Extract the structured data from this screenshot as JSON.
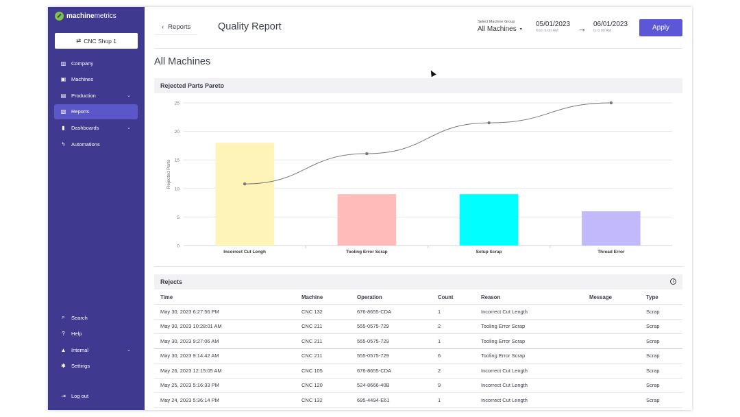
{
  "brand": {
    "name_bold": "machine",
    "name_rest": "metrics",
    "color": "#7dc242"
  },
  "sidebar": {
    "shop_button": "CNC Shop 1",
    "items": [
      {
        "label": "Company",
        "icon": "company-icon",
        "active": false,
        "chevron": false
      },
      {
        "label": "Machines",
        "icon": "machines-icon",
        "active": false,
        "chevron": false
      },
      {
        "label": "Production",
        "icon": "production-icon",
        "active": false,
        "chevron": true
      },
      {
        "label": "Reports",
        "icon": "reports-icon",
        "active": true,
        "chevron": false
      },
      {
        "label": "Dashboards",
        "icon": "dashboards-icon",
        "active": false,
        "chevron": true
      },
      {
        "label": "Automations",
        "icon": "automations-icon",
        "active": false,
        "chevron": false
      }
    ],
    "bottom_items": [
      {
        "label": "Search",
        "icon": "search-icon"
      },
      {
        "label": "Help",
        "icon": "help-icon"
      },
      {
        "label": "Internal",
        "icon": "lock-icon",
        "chevron": true
      },
      {
        "label": "Settings",
        "icon": "gear-icon"
      }
    ],
    "logout": "Log out",
    "bg_color": "#3f3a8f",
    "active_color": "#5b57c9"
  },
  "header": {
    "back_label": "Reports",
    "title": "Quality Report",
    "machine_group_label": "Select Machine Group",
    "machine_group_value": "All Machines",
    "date_from": "05/01/2023",
    "date_from_sub": "from 6:00 AM",
    "date_to": "06/01/2023",
    "date_to_sub": "to 6:00 AM",
    "apply_label": "Apply",
    "apply_color": "#5b57d6"
  },
  "section_title": "All Machines",
  "pareto": {
    "title": "Rejected Parts Pareto"
  },
  "chart_data": {
    "type": "bar",
    "title": "Rejected Parts Pareto",
    "xlabel": "",
    "ylabel": "Rejected Parts",
    "ylim": [
      0,
      25
    ],
    "yticks": [
      0,
      5,
      10,
      15,
      20,
      25
    ],
    "categories": [
      "Incorrect Cut Lengh",
      "Tooling Error Scrap",
      "Setup Scrap",
      "Thread Error"
    ],
    "values": [
      18,
      9,
      9,
      6
    ],
    "bar_colors": [
      "#fef4b8",
      "#ffbaba",
      "#00ffff",
      "#c2b9fb"
    ],
    "cumulative_line": [
      10.8,
      16.1,
      21.5,
      25
    ],
    "line_color": "#777777",
    "grid": true
  },
  "rejects": {
    "title": "Rejects",
    "columns": [
      "Time",
      "Machine",
      "Operation",
      "Count",
      "Reason",
      "Message",
      "Type"
    ],
    "rows": [
      [
        "May 30, 2023 6:27:56 PM",
        "CNC 132",
        "676-8655-CDA",
        "1",
        "Incorrect Cut Length",
        "",
        "Scrap"
      ],
      [
        "May 30, 2023 10:28:01 AM",
        "CNC 211",
        "555-0575-729",
        "2",
        "Tooling Error Scrap",
        "",
        "Scrap"
      ],
      [
        "May 30, 2023 9:27:06 AM",
        "CNC 211",
        "555-0575-729",
        "1",
        "Tooling Error Scrap",
        "",
        "Scrap"
      ],
      [
        "May 30, 2023 9:14:42 AM",
        "CNC 211",
        "555-0575-729",
        "6",
        "Tooling Error Scrap",
        "",
        "Scrap"
      ],
      [
        "May 26, 2023 12:15:05 AM",
        "CNC 105",
        "676-8655-CDA",
        "2",
        "Incorrect Cut Length",
        "",
        "Scrap"
      ],
      [
        "May 25, 2023 5:16:33 PM",
        "CNC 120",
        "524-8666-40B",
        "9",
        "Incorrect Cut Length",
        "",
        "Scrap"
      ],
      [
        "May 24, 2023 5:36:14 PM",
        "CNC 132",
        "695-4494-E61",
        "1",
        "Incorrect Cut Length",
        "",
        "Scrap"
      ]
    ]
  }
}
